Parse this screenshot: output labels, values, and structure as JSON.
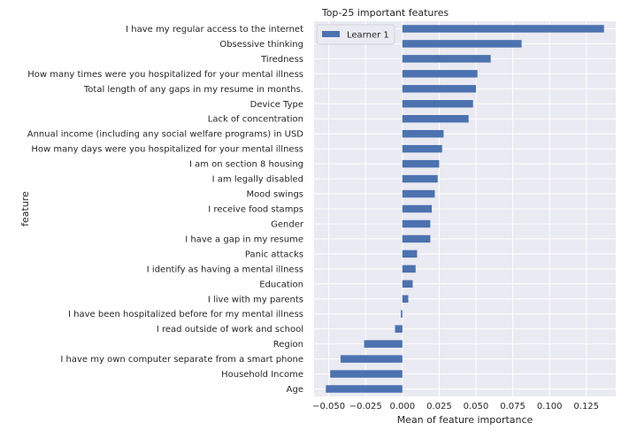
{
  "chart_data": {
    "type": "bar",
    "orientation": "horizontal",
    "title": "Top-25 important features",
    "xlabel": "Mean of feature importance",
    "ylabel": "feature",
    "xlim": [
      -0.06,
      0.145
    ],
    "xticks": [
      -0.05,
      -0.025,
      0.0,
      0.025,
      0.05,
      0.075,
      0.1,
      0.125
    ],
    "xtick_labels": [
      "−0.050",
      "−0.025",
      "0.000",
      "0.025",
      "0.050",
      "0.075",
      "0.100",
      "0.125"
    ],
    "grid": true,
    "legend_position": "top-left",
    "colors": {
      "bar": "#4c72b0",
      "background": "#eaeaf2",
      "grid": "#ffffff"
    },
    "categories": [
      "I have my regular access to the internet",
      "Obsessive thinking",
      "Tiredness",
      "How many times were you hospitalized for your mental illness",
      "Total length of any gaps in my resume in months.",
      "Device Type",
      "Lack of concentration",
      "Annual income (including any social welfare programs) in USD",
      "How many days were you hospitalized for your mental illness",
      "I am on section 8 housing",
      "I am legally disabled",
      "Mood swings",
      "I receive food stamps",
      "Gender",
      "I have a gap in my resume",
      "Panic attacks",
      "I identify as having a mental illness",
      "Education",
      "I live with my parents",
      "I have been hospitalized before for my mental illness",
      "I read outside of work and school",
      "Region",
      "I have my own computer separate from a smart phone",
      "Household Income",
      "Age"
    ],
    "series": [
      {
        "name": "Learner 1",
        "values": [
          0.137,
          0.081,
          0.06,
          0.051,
          0.05,
          0.048,
          0.045,
          0.028,
          0.027,
          0.025,
          0.024,
          0.022,
          0.02,
          0.019,
          0.019,
          0.01,
          0.009,
          0.007,
          0.004,
          -0.001,
          -0.005,
          -0.026,
          -0.042,
          -0.049,
          -0.052
        ]
      }
    ]
  }
}
